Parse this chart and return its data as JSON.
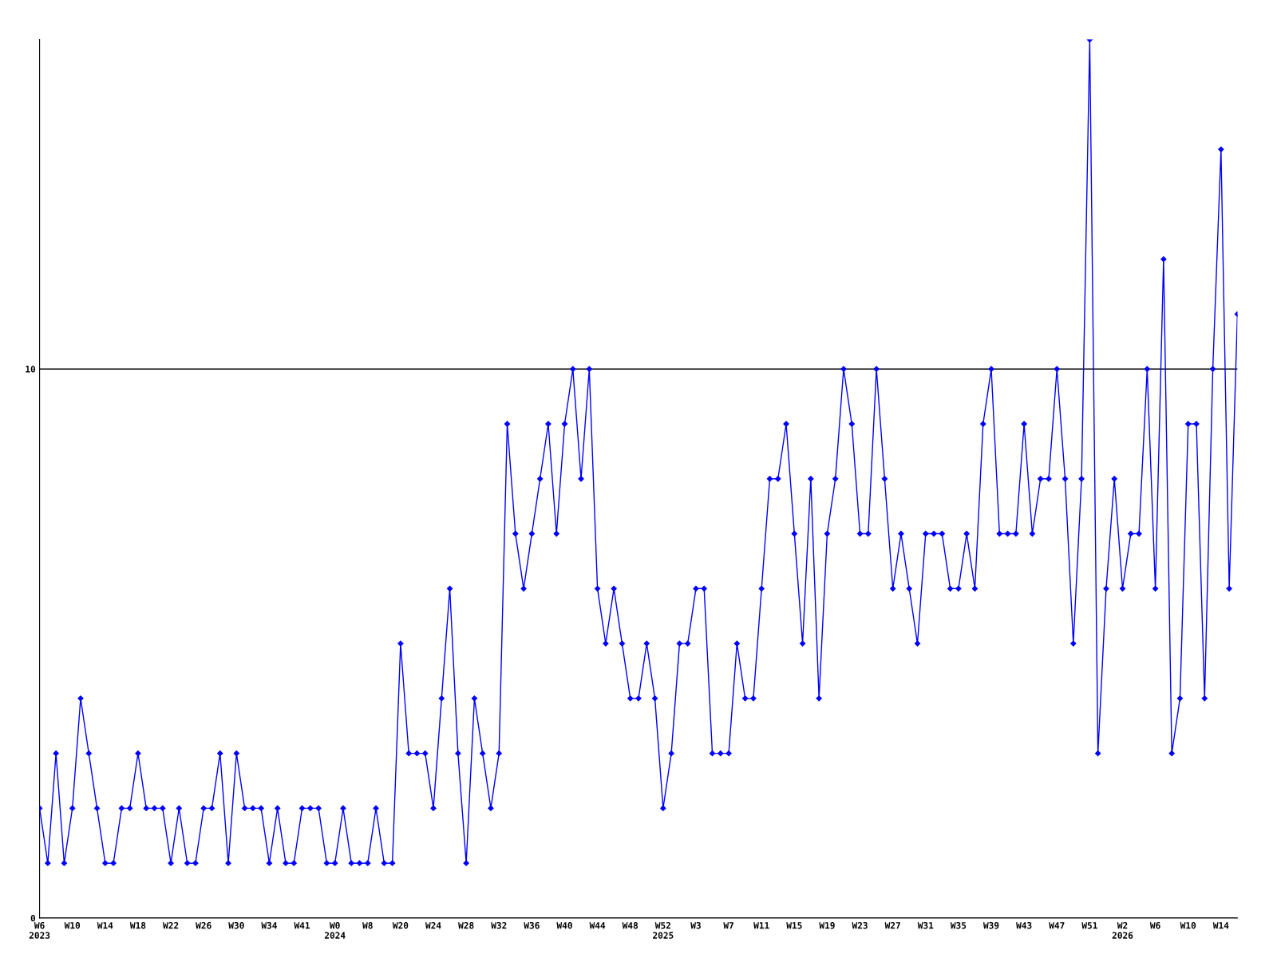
{
  "chart_data": {
    "type": "line",
    "categories": [
      "W6\n2023",
      null,
      null,
      null,
      "W10",
      null,
      null,
      null,
      "W14",
      null,
      null,
      null,
      "W18",
      null,
      null,
      null,
      "W22",
      null,
      null,
      null,
      "W26",
      null,
      null,
      null,
      "W30",
      null,
      null,
      null,
      "W34",
      null,
      null,
      null,
      "W41",
      null,
      null,
      null,
      "W0\n2024",
      null,
      null,
      null,
      "W8",
      null,
      null,
      null,
      "W20",
      null,
      null,
      null,
      "W24",
      null,
      null,
      null,
      "W28",
      null,
      null,
      null,
      "W32",
      null,
      null,
      null,
      "W36",
      null,
      null,
      null,
      "W40",
      null,
      null,
      null,
      "W44",
      null,
      null,
      null,
      "W48",
      null,
      null,
      null,
      "W52\n2025",
      null,
      null,
      null,
      "W3",
      null,
      null,
      null,
      "W7",
      null,
      null,
      null,
      "W11",
      null,
      null,
      null,
      "W15",
      null,
      null,
      null,
      "W19",
      null,
      null,
      null,
      "W23",
      null,
      null,
      null,
      "W27",
      null,
      null,
      null,
      "W31",
      null,
      null,
      null,
      "W35",
      null,
      null,
      null,
      "W39",
      null,
      null,
      null,
      "W43",
      null,
      null,
      null,
      "W47",
      null,
      null,
      null,
      "W51",
      null,
      null,
      null,
      "W2\n2026",
      null,
      null,
      null,
      "W6",
      null,
      null,
      null,
      "W10",
      null,
      null,
      null,
      "W14",
      null,
      null
    ],
    "values": [
      2,
      1,
      3,
      1,
      2,
      4,
      3,
      2,
      1,
      1,
      2,
      2,
      3,
      2,
      2,
      2,
      1,
      2,
      1,
      1,
      2,
      2,
      3,
      1,
      3,
      2,
      2,
      2,
      1,
      2,
      1,
      1,
      2,
      2,
      2,
      1,
      1,
      2,
      1,
      1,
      1,
      2,
      1,
      1,
      5,
      3,
      3,
      3,
      2,
      4,
      6,
      3,
      1,
      4,
      3,
      2,
      3,
      9,
      7,
      6,
      7,
      8,
      9,
      7,
      9,
      10,
      8,
      10,
      6,
      5,
      6,
      5,
      4,
      4,
      5,
      4,
      2,
      3,
      5,
      5,
      6,
      6,
      3,
      3,
      3,
      5,
      4,
      4,
      6,
      8,
      8,
      9,
      7,
      5,
      8,
      4,
      7,
      8,
      10,
      9,
      7,
      7,
      10,
      8,
      6,
      7,
      6,
      5,
      7,
      7,
      7,
      6,
      6,
      7,
      6,
      9,
      10,
      7,
      7,
      7,
      9,
      7,
      8,
      8,
      10,
      8,
      5,
      8,
      16,
      3,
      6,
      8,
      6,
      7,
      7,
      10,
      6,
      12,
      3,
      4,
      9,
      9,
      4,
      10,
      14,
      6,
      11
    ],
    "color": "#0000ff",
    "ylim": [
      0,
      16
    ],
    "yticks": [
      0,
      10
    ],
    "grid": "y",
    "marker": "diamond",
    "line_style": "solid"
  }
}
